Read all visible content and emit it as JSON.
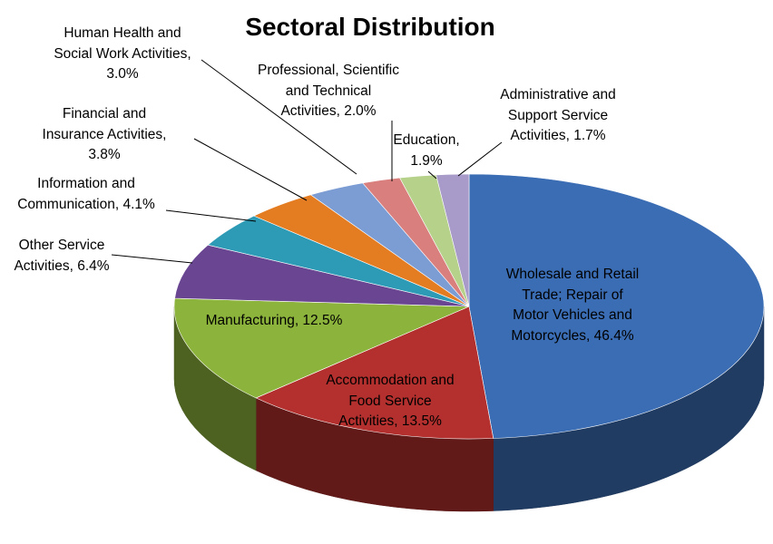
{
  "chart_data": {
    "type": "pie",
    "style": "3d",
    "title": "Sectoral Distribution",
    "unit": "%",
    "slices": [
      {
        "name": "Wholesale and Retail Trade; Repair of Motor Vehicles and Motorcycles",
        "value": 46.4,
        "color": "#3b6db4",
        "label_lines": [
          "Wholesale and Retail",
          "Trade; Repair of",
          "Motor Vehicles and",
          "Motorcycles, 46.4%"
        ]
      },
      {
        "name": "Accommodation and Food Service Activities",
        "value": 13.5,
        "color": "#b3302e",
        "label_lines": [
          "Accommodation and",
          "Food Service",
          "Activities, 13.5%"
        ]
      },
      {
        "name": "Manufacturing",
        "value": 12.5,
        "color": "#8cb33b",
        "label_lines": [
          "Manufacturing, 12.5%"
        ]
      },
      {
        "name": "Other Service Activities",
        "value": 6.4,
        "color": "#6a4692",
        "label_lines": [
          "Other Service",
          "Activities, 6.4%"
        ]
      },
      {
        "name": "Information and Communication",
        "value": 4.1,
        "color": "#2e9bb6",
        "label_lines": [
          "Information and",
          "Communication, 4.1%"
        ]
      },
      {
        "name": "Financial and Insurance Activities",
        "value": 3.8,
        "color": "#e47c22",
        "label_lines": [
          "Financial and",
          "Insurance Activities,",
          "3.8%"
        ]
      },
      {
        "name": "Human Health and Social Work Activities",
        "value": 3.0,
        "color": "#7c9cd4",
        "label_lines": [
          "Human Health and",
          "Social Work Activities,",
          "3.0%"
        ]
      },
      {
        "name": "Professional, Scientific and Technical Activities",
        "value": 2.0,
        "color": "#d97f7e",
        "label_lines": [
          "Professional, Scientific",
          "and Technical",
          "Activities, 2.0%"
        ]
      },
      {
        "name": "Education",
        "value": 1.9,
        "color": "#b5d18a",
        "label_lines": [
          "Education,",
          "1.9%"
        ]
      },
      {
        "name": "Administrative and Support Service Activities",
        "value": 1.7,
        "color": "#a89bc9",
        "label_lines": [
          "Administrative and",
          "Support Service",
          "Activities, 1.7%"
        ]
      }
    ]
  }
}
